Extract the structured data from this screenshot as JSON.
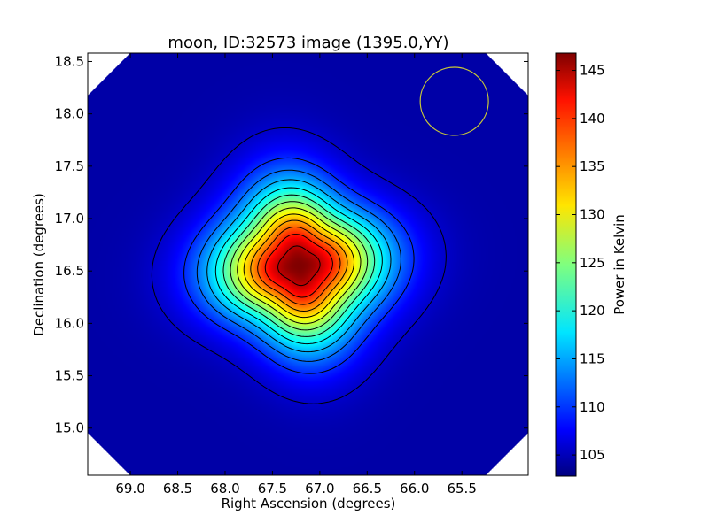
{
  "chart_data": {
    "type": "heatmap",
    "title": "moon, ID:32573 image (1395.0,YY)",
    "xlabel": "Right Ascension (degrees)",
    "ylabel": "Declination (degrees)",
    "xlim": [
      69.45,
      64.8
    ],
    "ylim": [
      14.55,
      18.58
    ],
    "x_ticks": [
      69.0,
      68.5,
      68.0,
      67.5,
      67.0,
      66.5,
      66.0,
      65.5
    ],
    "x_tick_labels": [
      "69.0",
      "68.5",
      "68.0",
      "67.5",
      "67.0",
      "66.5",
      "66.0",
      "65.5"
    ],
    "y_ticks": [
      15.0,
      15.5,
      16.0,
      16.5,
      17.0,
      17.5,
      18.0,
      18.5
    ],
    "y_tick_labels": [
      "15.0",
      "15.5",
      "16.0",
      "16.5",
      "17.0",
      "17.5",
      "18.0",
      "18.5"
    ],
    "colorbar": {
      "label": "Power in Kelvin",
      "colormap": "jet",
      "range": [
        102.8,
        146.8
      ],
      "ticks": [
        105,
        110,
        115,
        120,
        125,
        130,
        135,
        140,
        145
      ],
      "tick_labels": [
        "105",
        "110",
        "115",
        "120",
        "125",
        "130",
        "135",
        "140",
        "145"
      ]
    },
    "source": {
      "center_ra": 67.22,
      "center_dec": 16.55,
      "peak_kelvin": 146.8,
      "background_kelvin": 104.5
    },
    "contour_levels": [
      106,
      110,
      113,
      116,
      119,
      122,
      125,
      128,
      131,
      134,
      137,
      140,
      144
    ],
    "beam_circle": {
      "ra": 65.58,
      "dec": 18.12,
      "radius_deg": 0.36,
      "color": "#c8c838"
    },
    "grid": false
  }
}
